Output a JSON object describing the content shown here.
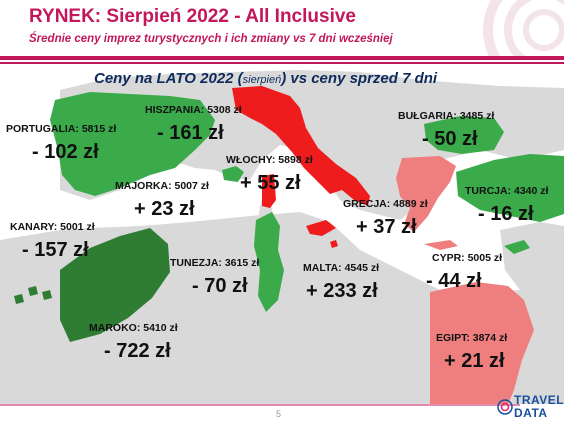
{
  "header": {
    "title": "RYNEK: Sierpień 2022 - All Inclusive",
    "subtitle": "Średnie ceny imprez turystycznych i ich zmiany vs 7 dni wcześniej"
  },
  "map_heading": {
    "main": "Ceny na LATO 2022 (",
    "small": "sierpień",
    "rest": ") vs ceny sprzed 7 dni"
  },
  "destinations": {
    "portugalia": {
      "label": "PORTUGALIA: 5815 zł",
      "change": "- 102 zł",
      "trend": "down"
    },
    "hiszpania": {
      "label": "HISZPANIA: 5308 zł",
      "change": "- 161 zł",
      "trend": "down"
    },
    "wlochy": {
      "label": "WŁOCHY: 5898 zł",
      "change": "+ 55 zł",
      "trend": "up"
    },
    "majorka": {
      "label": "MAJORKA: 5007 zł",
      "change": "+ 23 zł",
      "trend": "up"
    },
    "bulgaria": {
      "label": "BUŁGARIA: 3485 zł",
      "change": "- 50 zł",
      "trend": "down"
    },
    "turcja": {
      "label": "TURCJA: 4340 zł",
      "change": "- 16 zł",
      "trend": "down"
    },
    "grecja": {
      "label": "GRECJA: 4889 zł",
      "change": "+ 37 zł",
      "trend": "up"
    },
    "kanary": {
      "label": "KANARY: 5001 zł",
      "change": "- 157 zł",
      "trend": "down"
    },
    "tunezja": {
      "label": "TUNEZJA: 3615 zł",
      "change": "- 70 zł",
      "trend": "down"
    },
    "malta": {
      "label": "MALTA: 4545 zł",
      "change": "+ 233 zł",
      "trend": "up"
    },
    "cypr": {
      "label": "CYPR: 5005 zł",
      "change": "- 44 zł",
      "trend": "down"
    },
    "maroko": {
      "label": "MAROKO: 5410 zł",
      "change": "- 722 zł",
      "trend": "down"
    },
    "egipt": {
      "label": "EGIPT: 3874 zł",
      "change": "+ 21 zł",
      "trend": "up"
    }
  },
  "colors": {
    "accent": "#c2185b",
    "heading": "#0d2a5b",
    "price_down_light": "#3aaa4a",
    "price_down_dark": "#2e7d32",
    "price_up_red": "#ee1c1c",
    "price_up_salmon": "#ef7f7f",
    "land_grey": "#d9d9d9",
    "sea": "#ffffff"
  },
  "footer": {
    "page_number": "5",
    "logo_line1": "TRAVEL",
    "logo_line2": "DATA"
  }
}
